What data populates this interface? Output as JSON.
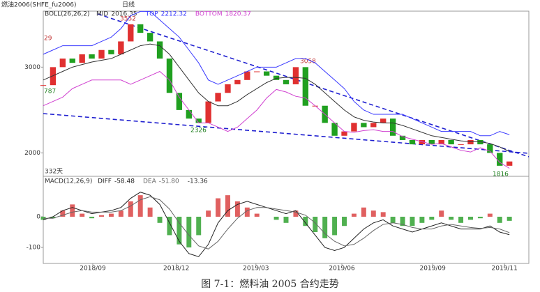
{
  "header": {
    "symbol": "燃油2006(SHFE_fu2006)",
    "period": "日线"
  },
  "caption": "图 7-1：燃料油 2005 合约走势",
  "chart_data": [
    {
      "type": "candles",
      "title": "BOLL(26,26,2)",
      "x": [
        0,
        2,
        4,
        6,
        8,
        10,
        12,
        14,
        16,
        18,
        20,
        22,
        24,
        26,
        28,
        30,
        32,
        34,
        36,
        38,
        40,
        42,
        44,
        46,
        48,
        50,
        52,
        54,
        56,
        58,
        60,
        62,
        64,
        66,
        68,
        70,
        72,
        74,
        76,
        78,
        80,
        82,
        84,
        86,
        88,
        90,
        92,
        94,
        96
      ],
      "values": [
        2790,
        3000,
        3100,
        3050,
        3150,
        3100,
        3200,
        3150,
        3300,
        3500,
        3400,
        3300,
        3100,
        2700,
        2500,
        2400,
        2350,
        2600,
        2700,
        2800,
        2850,
        2950,
        2950,
        2900,
        2850,
        2800,
        3000,
        2550,
        2550,
        2350,
        2200,
        2250,
        2350,
        2300,
        2350,
        2400,
        2200,
        2150,
        2100,
        2150,
        2100,
        2150,
        2100,
        2100,
        2150,
        2100,
        2000,
        1850,
        1900
      ],
      "series": [
        {
          "name": "MID",
          "color": "#333333",
          "values": [
            2850,
            2900,
            2950,
            3000,
            3030,
            3060,
            3080,
            3100,
            3150,
            3200,
            3250,
            3270,
            3250,
            3150,
            3000,
            2850,
            2700,
            2600,
            2550,
            2550,
            2600,
            2680,
            2750,
            2820,
            2870,
            2880,
            2880,
            2870,
            2800,
            2700,
            2600,
            2500,
            2420,
            2380,
            2360,
            2350,
            2350,
            2320,
            2280,
            2240,
            2200,
            2180,
            2160,
            2140,
            2130,
            2130,
            2110,
            2070,
            2016.35
          ]
        },
        {
          "name": "TOP",
          "color": "#3a3aff",
          "values": [
            3150,
            3200,
            3250,
            3250,
            3250,
            3250,
            3300,
            3350,
            3450,
            3600,
            3650,
            3650,
            3550,
            3450,
            3350,
            3200,
            3050,
            2850,
            2800,
            2850,
            2900,
            2950,
            3000,
            3000,
            3000,
            3050,
            3100,
            3100,
            3050,
            2950,
            2850,
            2750,
            2600,
            2500,
            2450,
            2450,
            2450,
            2450,
            2400,
            2350,
            2300,
            2250,
            2250,
            2250,
            2250,
            2200,
            2200,
            2250,
            2212.32
          ]
        },
        {
          "name": "BOTTOM",
          "color": "#d040d0",
          "values": [
            2550,
            2600,
            2650,
            2750,
            2800,
            2850,
            2850,
            2850,
            2850,
            2800,
            2850,
            2900,
            2950,
            2850,
            2650,
            2500,
            2350,
            2350,
            2300,
            2250,
            2300,
            2400,
            2500,
            2640,
            2740,
            2710,
            2660,
            2640,
            2550,
            2450,
            2350,
            2250,
            2240,
            2260,
            2270,
            2250,
            2250,
            2190,
            2160,
            2130,
            2100,
            2110,
            2070,
            2030,
            2010,
            2060,
            2020,
            1890,
            1820.37
          ]
        }
      ],
      "annotations": [
        "3552",
        "29",
        "787",
        "2326",
        "3058",
        "1816",
        "332天"
      ],
      "xlim": [
        0,
        100
      ],
      "ylim": [
        1735,
        3653
      ],
      "yticks": [
        2000,
        3000
      ],
      "up_color": "#e03030",
      "down_color": "#20a020"
    },
    {
      "type": "macd",
      "title": "MACD(12,26,9)",
      "x": [
        0,
        2,
        4,
        6,
        8,
        10,
        12,
        14,
        16,
        18,
        20,
        22,
        24,
        26,
        28,
        30,
        32,
        34,
        36,
        38,
        40,
        42,
        44,
        46,
        48,
        50,
        52,
        54,
        56,
        58,
        60,
        62,
        64,
        66,
        68,
        70,
        72,
        74,
        76,
        78,
        80,
        82,
        84,
        86,
        88,
        90,
        92,
        94,
        96
      ],
      "values": [
        -10,
        -5,
        20,
        40,
        10,
        -5,
        5,
        10,
        20,
        50,
        70,
        30,
        -20,
        -60,
        -90,
        -100,
        -60,
        20,
        60,
        70,
        50,
        30,
        10,
        0,
        -10,
        -20,
        20,
        -30,
        -50,
        -70,
        -60,
        -30,
        10,
        30,
        20,
        15,
        -20,
        -30,
        -30,
        -20,
        -10,
        20,
        -10,
        -20,
        -10,
        -5,
        10,
        -20,
        -13.36
      ],
      "series": [
        {
          "name": "DIFF",
          "color": "#222222",
          "last_label": "-58.48",
          "values": [
            -10,
            0,
            20,
            30,
            20,
            10,
            15,
            20,
            30,
            60,
            80,
            70,
            40,
            -20,
            -80,
            -120,
            -130,
            -90,
            -20,
            20,
            40,
            50,
            40,
            30,
            20,
            10,
            20,
            -20,
            -60,
            -100,
            -110,
            -100,
            -70,
            -40,
            -20,
            -10,
            -30,
            -40,
            -50,
            -40,
            -30,
            -20,
            -30,
            -40,
            -40,
            -40,
            -30,
            -50,
            -58.48
          ]
        },
        {
          "name": "DEA",
          "color": "#666666",
          "last_label": "-51.80",
          "values": [
            -5,
            -5,
            5,
            15,
            20,
            15,
            15,
            15,
            20,
            35,
            55,
            65,
            55,
            25,
            -20,
            -60,
            -95,
            -105,
            -80,
            -40,
            -5,
            20,
            30,
            30,
            25,
            20,
            15,
            5,
            -20,
            -55,
            -80,
            -95,
            -90,
            -70,
            -45,
            -25,
            -20,
            -25,
            -35,
            -40,
            -40,
            -30,
            -25,
            -30,
            -35,
            -38,
            -35,
            -40,
            -51.8
          ]
        }
      ],
      "xlim": [
        0,
        100
      ],
      "ylim": [
        -152,
        127
      ],
      "yticks": [
        -100,
        0
      ],
      "xticks": [
        {
          "value": 10.2,
          "label": "2018/09"
        },
        {
          "value": 27.4,
          "label": "2018/12"
        },
        {
          "value": 43.8,
          "label": "2019/03"
        },
        {
          "value": 61.5,
          "label": "2019/06"
        },
        {
          "value": 80.2,
          "label": "2019/09"
        },
        {
          "value": 95,
          "label": "2019/11"
        }
      ],
      "up_color": "#e06060",
      "down_color": "#50b050"
    }
  ]
}
